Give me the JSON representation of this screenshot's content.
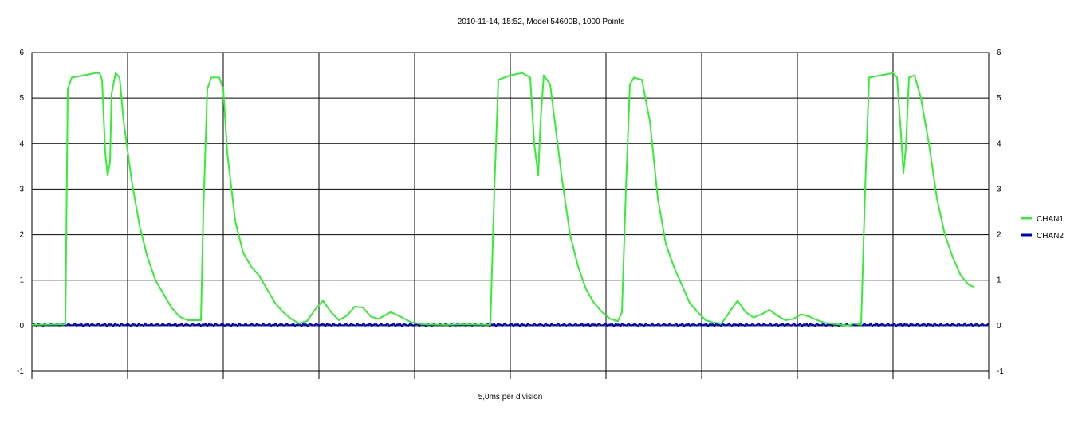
{
  "chart_data": {
    "type": "line",
    "title": "2010-11-14, 15:52, Model 54600B,  1000 Points",
    "xlabel": "5,0ms per division",
    "ylabel": "",
    "ylim": [
      -1,
      6
    ],
    "yticks": [
      "-1",
      "0",
      "1",
      "2",
      "3",
      "4",
      "5",
      "6"
    ],
    "x_divisions": 10,
    "grid": true,
    "legend_position": "right",
    "series": [
      {
        "name": "CHAN1",
        "color": "#33ee33",
        "points": [
          [
            0.0,
            0.02
          ],
          [
            0.42,
            0.03
          ],
          [
            0.45,
            5.2
          ],
          [
            0.5,
            5.45
          ],
          [
            0.65,
            5.5
          ],
          [
            0.8,
            5.55
          ],
          [
            0.85,
            5.55
          ],
          [
            0.88,
            5.4
          ],
          [
            0.92,
            3.8
          ],
          [
            0.95,
            3.3
          ],
          [
            0.98,
            3.6
          ],
          [
            1.0,
            5.1
          ],
          [
            1.05,
            5.55
          ],
          [
            1.1,
            5.45
          ],
          [
            1.15,
            4.5
          ],
          [
            1.25,
            3.2
          ],
          [
            1.35,
            2.2
          ],
          [
            1.45,
            1.5
          ],
          [
            1.55,
            1.0
          ],
          [
            1.65,
            0.7
          ],
          [
            1.75,
            0.4
          ],
          [
            1.85,
            0.2
          ],
          [
            1.95,
            0.12
          ],
          [
            2.05,
            0.12
          ],
          [
            2.12,
            0.12
          ],
          [
            2.15,
            2.5
          ],
          [
            2.2,
            5.2
          ],
          [
            2.25,
            5.45
          ],
          [
            2.35,
            5.45
          ],
          [
            2.4,
            5.2
          ],
          [
            2.45,
            3.8
          ],
          [
            2.55,
            2.3
          ],
          [
            2.65,
            1.6
          ],
          [
            2.75,
            1.3
          ],
          [
            2.85,
            1.1
          ],
          [
            2.95,
            0.8
          ],
          [
            3.05,
            0.5
          ],
          [
            3.15,
            0.3
          ],
          [
            3.25,
            0.15
          ],
          [
            3.35,
            0.05
          ],
          [
            3.45,
            0.1
          ],
          [
            3.55,
            0.35
          ],
          [
            3.65,
            0.55
          ],
          [
            3.75,
            0.3
          ],
          [
            3.85,
            0.12
          ],
          [
            3.95,
            0.22
          ],
          [
            4.05,
            0.42
          ],
          [
            4.15,
            0.4
          ],
          [
            4.25,
            0.2
          ],
          [
            4.35,
            0.15
          ],
          [
            4.5,
            0.3
          ],
          [
            4.6,
            0.22
          ],
          [
            4.75,
            0.08
          ],
          [
            4.9,
            0.03
          ],
          [
            5.2,
            0.02
          ],
          [
            5.4,
            0.03
          ],
          [
            5.75,
            0.02
          ],
          [
            5.8,
            3.0
          ],
          [
            5.85,
            5.4
          ],
          [
            6.0,
            5.5
          ],
          [
            6.15,
            5.55
          ],
          [
            6.25,
            5.45
          ],
          [
            6.3,
            4.0
          ],
          [
            6.35,
            3.3
          ],
          [
            6.38,
            4.5
          ],
          [
            6.42,
            5.5
          ],
          [
            6.5,
            5.3
          ],
          [
            6.55,
            4.6
          ],
          [
            6.65,
            3.2
          ],
          [
            6.75,
            2.0
          ],
          [
            6.85,
            1.3
          ],
          [
            6.95,
            0.8
          ],
          [
            7.05,
            0.5
          ],
          [
            7.15,
            0.3
          ],
          [
            7.25,
            0.15
          ],
          [
            7.35,
            0.1
          ],
          [
            7.4,
            0.3
          ],
          [
            7.45,
            3.0
          ],
          [
            7.5,
            5.3
          ],
          [
            7.55,
            5.45
          ],
          [
            7.65,
            5.4
          ],
          [
            7.75,
            4.5
          ],
          [
            7.85,
            2.8
          ],
          [
            7.95,
            1.8
          ],
          [
            8.05,
            1.3
          ],
          [
            8.15,
            0.9
          ],
          [
            8.25,
            0.5
          ],
          [
            8.35,
            0.3
          ],
          [
            8.45,
            0.12
          ],
          [
            8.55,
            0.07
          ],
          [
            8.65,
            0.05
          ],
          [
            8.75,
            0.3
          ],
          [
            8.85,
            0.55
          ],
          [
            8.95,
            0.3
          ],
          [
            9.05,
            0.18
          ],
          [
            9.15,
            0.25
          ],
          [
            9.25,
            0.35
          ],
          [
            9.35,
            0.22
          ],
          [
            9.45,
            0.12
          ],
          [
            9.55,
            0.15
          ],
          [
            9.65,
            0.25
          ],
          [
            9.75,
            0.2
          ],
          [
            9.85,
            0.12
          ],
          [
            9.95,
            0.06
          ],
          [
            10.1,
            0.03
          ],
          [
            10.25,
            0.0
          ],
          [
            10.3,
            0.05
          ],
          [
            10.4,
            0.02
          ],
          [
            10.45,
            3.0
          ],
          [
            10.5,
            5.45
          ],
          [
            10.65,
            5.5
          ],
          [
            10.8,
            5.55
          ],
          [
            10.85,
            5.45
          ],
          [
            10.9,
            4.2
          ],
          [
            10.93,
            3.35
          ],
          [
            10.96,
            3.9
          ],
          [
            11.0,
            5.45
          ],
          [
            11.07,
            5.5
          ],
          [
            11.15,
            5.0
          ],
          [
            11.25,
            4.0
          ],
          [
            11.35,
            2.8
          ],
          [
            11.45,
            2.0
          ],
          [
            11.55,
            1.5
          ],
          [
            11.65,
            1.1
          ],
          [
            11.75,
            0.9
          ],
          [
            11.82,
            0.85
          ]
        ]
      },
      {
        "name": "CHAN2",
        "color": "#0000cc",
        "points": [
          [
            0.0,
            0.02
          ],
          [
            12.0,
            0.02
          ]
        ]
      }
    ]
  }
}
